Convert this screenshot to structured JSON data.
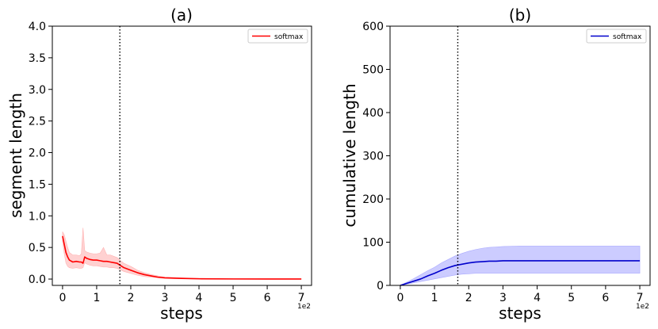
{
  "chart_data": [
    {
      "type": "line",
      "title": "(a)",
      "xlabel": "steps",
      "ylabel": "segment length",
      "x_offset_label": "1e2",
      "xlim": [
        -0.3,
        7.3
      ],
      "ylim": [
        -0.1,
        4.0
      ],
      "x_ticks": [
        0,
        1,
        2,
        3,
        4,
        5,
        6,
        7
      ],
      "x_tick_labels": [
        "0",
        "1",
        "2",
        "3",
        "4",
        "5",
        "6",
        "7"
      ],
      "y_ticks": [
        0.0,
        0.5,
        1.0,
        1.5,
        2.0,
        2.5,
        3.0,
        3.5,
        4.0
      ],
      "y_tick_labels": [
        "0.0",
        "0.5",
        "1.0",
        "1.5",
        "2.0",
        "2.5",
        "3.0",
        "3.5",
        "4.0"
      ],
      "grid": false,
      "legend_position": "top-right",
      "vline_x": 1.68,
      "series": [
        {
          "name": "softmax",
          "color": "#ff0000",
          "band_color": "#ffb3b3",
          "x": [
            0,
            0.05,
            0.1,
            0.15,
            0.2,
            0.3,
            0.4,
            0.5,
            0.55,
            0.6,
            0.65,
            0.7,
            0.8,
            0.9,
            1.0,
            1.1,
            1.2,
            1.3,
            1.4,
            1.5,
            1.6,
            1.68,
            1.8,
            2.0,
            2.2,
            2.4,
            2.6,
            2.8,
            3.0,
            3.5,
            4.0,
            5.0,
            6.0,
            7.0
          ],
          "y": [
            0.68,
            0.55,
            0.42,
            0.35,
            0.3,
            0.27,
            0.28,
            0.27,
            0.27,
            0.25,
            0.35,
            0.33,
            0.31,
            0.3,
            0.3,
            0.29,
            0.28,
            0.28,
            0.27,
            0.26,
            0.25,
            0.22,
            0.18,
            0.14,
            0.1,
            0.07,
            0.05,
            0.03,
            0.02,
            0.01,
            0.005,
            0.002,
            0.001,
            0.001
          ],
          "band_lower": [
            0.6,
            0.4,
            0.25,
            0.2,
            0.18,
            0.17,
            0.18,
            0.17,
            0.17,
            0.18,
            0.26,
            0.24,
            0.22,
            0.21,
            0.21,
            0.2,
            0.19,
            0.19,
            0.18,
            0.18,
            0.17,
            0.15,
            0.12,
            0.09,
            0.06,
            0.04,
            0.03,
            0.02,
            0.01,
            0.005,
            0.0,
            0.0,
            0.0,
            0.0
          ],
          "band_upper": [
            0.75,
            0.7,
            0.6,
            0.5,
            0.42,
            0.38,
            0.38,
            0.37,
            0.4,
            0.81,
            0.45,
            0.43,
            0.41,
            0.4,
            0.4,
            0.41,
            0.5,
            0.38,
            0.38,
            0.36,
            0.34,
            0.3,
            0.25,
            0.2,
            0.14,
            0.1,
            0.07,
            0.05,
            0.03,
            0.02,
            0.01,
            0.005,
            0.003,
            0.003
          ]
        }
      ]
    },
    {
      "type": "area",
      "title": "(b)",
      "xlabel": "steps",
      "ylabel": "cumulative length",
      "x_offset_label": "1e2",
      "xlim": [
        -0.3,
        7.3
      ],
      "ylim": [
        0,
        600
      ],
      "x_ticks": [
        0,
        1,
        2,
        3,
        4,
        5,
        6,
        7
      ],
      "x_tick_labels": [
        "0",
        "1",
        "2",
        "3",
        "4",
        "5",
        "6",
        "7"
      ],
      "y_ticks": [
        0,
        100,
        200,
        300,
        400,
        500,
        600
      ],
      "y_tick_labels": [
        "0",
        "100",
        "200",
        "300",
        "400",
        "500",
        "600"
      ],
      "grid": false,
      "legend_position": "top-right",
      "vline_x": 1.68,
      "series": [
        {
          "name": "softmax",
          "color": "#0000cc",
          "band_color": "#aaaaff",
          "x": [
            0,
            0.2,
            0.4,
            0.6,
            0.8,
            1.0,
            1.2,
            1.4,
            1.6,
            1.8,
            2.0,
            2.2,
            2.4,
            2.6,
            2.8,
            3.0,
            3.5,
            4.0,
            5.0,
            6.0,
            7.0
          ],
          "y": [
            0,
            5,
            10,
            15,
            22,
            28,
            35,
            41,
            46,
            49,
            52,
            54,
            55,
            56,
            56,
            57,
            57,
            57,
            57,
            57,
            57
          ],
          "band_lower": [
            0,
            3,
            6,
            9,
            12,
            15,
            18,
            21,
            24,
            26,
            27,
            28,
            28,
            28,
            28,
            28,
            28,
            28,
            28,
            28,
            28
          ],
          "band_upper": [
            0,
            8,
            16,
            25,
            34,
            42,
            52,
            60,
            68,
            74,
            79,
            83,
            86,
            88,
            89,
            90,
            91,
            91,
            91,
            91,
            91
          ]
        }
      ]
    }
  ]
}
